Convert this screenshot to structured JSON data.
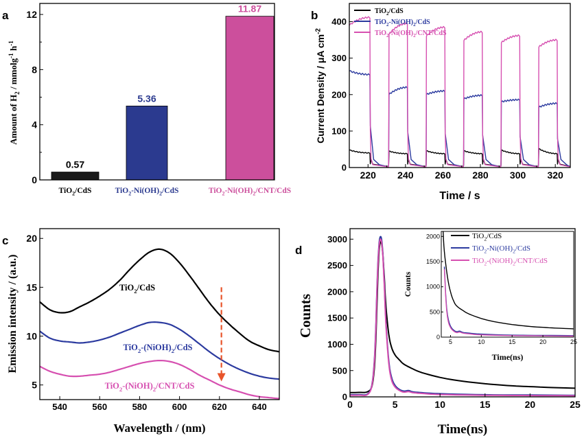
{
  "chart_data": [
    {
      "panel_label": "a",
      "type": "bar",
      "ylabel": "Amount of H2 / mmolg-1 h-1",
      "ylim": [
        0,
        12.8
      ],
      "yticks": [
        "0",
        "4",
        "8",
        "12"
      ],
      "categories": [
        "TiO2/CdS",
        "TiO2-Ni(OH)2/CdS",
        "TiO2-Ni(OH)2/CNT/CdS"
      ],
      "values": [
        0.57,
        5.36,
        11.87
      ],
      "value_labels": [
        "0.57",
        "5.36",
        "11.87"
      ],
      "colors": [
        "#1a1a1a",
        "#2b3a8f",
        "#cc4f9c"
      ]
    },
    {
      "panel_label": "b",
      "type": "line",
      "xlabel": "Time / s",
      "ylabel": "Current Density / μA cm-2",
      "xlim": [
        210,
        328
      ],
      "ylim": [
        0,
        450
      ],
      "xticks": [
        "220",
        "240",
        "260",
        "280",
        "300",
        "320"
      ],
      "yticks": [
        "0",
        "100",
        "200",
        "300",
        "400"
      ],
      "legend": [
        "TiO2/CdS",
        "TiO2-Ni(OH)2/CdS",
        "TiO2-Ni(OH)2/CNT/CdS"
      ],
      "legend_position": "top-left",
      "colors": [
        "#000000",
        "#2b3a9f",
        "#d64fb0"
      ],
      "on_intervals": [
        [
          210,
          221
        ],
        [
          231,
          241
        ],
        [
          251,
          261
        ],
        [
          271,
          281
        ],
        [
          291,
          301
        ],
        [
          311,
          321
        ]
      ],
      "series": [
        {
          "name": "TiO2/CdS",
          "on_start": [
            48,
            45,
            46,
            46,
            48,
            52
          ],
          "on_end": [
            40,
            38,
            38,
            38,
            38,
            38
          ],
          "dark": 3
        },
        {
          "name": "TiO2-Ni(OH)2/CdS",
          "on_start": [
            265,
            200,
            200,
            188,
            180,
            165
          ],
          "on_end": [
            255,
            220,
            210,
            198,
            186,
            176
          ],
          "dark": 2
        },
        {
          "name": "TiO2-Ni(OH)2/CNT/CdS",
          "on_start": [
            390,
            365,
            360,
            348,
            342,
            330
          ],
          "on_end": [
            412,
            395,
            385,
            372,
            362,
            350
          ],
          "dark": 2
        }
      ]
    },
    {
      "panel_label": "c",
      "type": "line",
      "xlabel": "Wavelength / (nm)",
      "ylabel": "Emission intensity / (a.u.)",
      "xlim": [
        530,
        650
      ],
      "ylim": [
        3.5,
        21
      ],
      "xticks": [
        "540",
        "560",
        "580",
        "600",
        "620",
        "640"
      ],
      "yticks": [
        "5",
        "10",
        "15",
        "20"
      ],
      "colors": [
        "#000000",
        "#2b3a9f",
        "#d64fb0",
        "#e8542a"
      ],
      "series": [
        {
          "name": "TiO2/CdS",
          "x": [
            530,
            535,
            540,
            545,
            550,
            555,
            560,
            565,
            570,
            575,
            580,
            585,
            590,
            595,
            600,
            605,
            610,
            615,
            620,
            625,
            630,
            635,
            640,
            645,
            650
          ],
          "y": [
            13.5,
            12.7,
            12.4,
            12.5,
            13.0,
            13.5,
            14.1,
            14.8,
            15.7,
            16.8,
            17.8,
            18.6,
            18.9,
            18.5,
            17.5,
            16.2,
            14.8,
            13.4,
            12.2,
            11.2,
            10.3,
            9.5,
            9.0,
            8.6,
            8.4
          ]
        },
        {
          "name": "TiO2-(NiOH)2/CdS",
          "x": [
            530,
            535,
            540,
            545,
            550,
            555,
            560,
            565,
            570,
            575,
            580,
            585,
            590,
            595,
            600,
            605,
            610,
            615,
            620,
            625,
            630,
            635,
            640,
            645,
            650
          ],
          "y": [
            10.5,
            9.8,
            9.5,
            9.4,
            9.3,
            9.4,
            9.6,
            9.9,
            10.3,
            10.7,
            11.1,
            11.4,
            11.4,
            11.2,
            10.7,
            10.0,
            9.2,
            8.4,
            7.7,
            7.1,
            6.6,
            6.2,
            5.9,
            5.7,
            5.6
          ]
        },
        {
          "name": "TiO2-(NiOH)2/CNT/CdS",
          "x": [
            530,
            535,
            540,
            545,
            550,
            555,
            560,
            565,
            570,
            575,
            580,
            585,
            590,
            595,
            600,
            605,
            610,
            615,
            620,
            625,
            630,
            635,
            640,
            645,
            650
          ],
          "y": [
            6.9,
            6.4,
            6.1,
            5.9,
            5.9,
            6.0,
            6.1,
            6.3,
            6.6,
            6.9,
            7.2,
            7.4,
            7.5,
            7.4,
            7.1,
            6.6,
            6.0,
            5.5,
            5.0,
            4.6,
            4.3,
            4.0,
            3.8,
            3.7,
            3.6
          ]
        }
      ],
      "annotations": [
        "TiO2/CdS",
        "TiO2-(NiOH)2/CdS",
        "TiO2-(NiOH)2/CNT/CdS"
      ],
      "arrow": {
        "x": 621,
        "y_from": 15.0,
        "y_to": 5.5
      }
    },
    {
      "panel_label": "d",
      "type": "line",
      "xlabel": "Time(ns)",
      "ylabel": "Counts",
      "xlim": [
        0,
        25
      ],
      "ylim": [
        0,
        3200
      ],
      "xticks": [
        "0",
        "5",
        "10",
        "15",
        "20",
        "25"
      ],
      "yticks": [
        "0",
        "500",
        "1000",
        "1500",
        "2000",
        "2500",
        "3000"
      ],
      "colors": [
        "#000000",
        "#2b3a9f",
        "#d64fb0"
      ],
      "series": [
        {
          "name": "TiO2/CdS",
          "x": [
            0,
            1,
            2,
            2.5,
            2.8,
            3.0,
            3.2,
            3.4,
            3.6,
            3.8,
            4.0,
            4.3,
            4.6,
            5.0,
            5.5,
            6.0,
            7,
            8,
            10,
            12,
            15,
            18,
            20,
            22,
            25
          ],
          "y": [
            80,
            85,
            100,
            250,
            800,
            1800,
            2700,
            2950,
            2800,
            2300,
            1700,
            1200,
            950,
            800,
            700,
            620,
            530,
            460,
            370,
            310,
            250,
            210,
            195,
            180,
            165
          ]
        },
        {
          "name": "TiO2-Ni(OH)2/CdS",
          "x": [
            0,
            1,
            2,
            2.5,
            2.8,
            3.0,
            3.2,
            3.4,
            3.6,
            3.8,
            4.0,
            4.3,
            4.6,
            5.0,
            5.5,
            6.0,
            6.5,
            7,
            8,
            10,
            15,
            20,
            25
          ],
          "y": [
            40,
            42,
            60,
            300,
            1000,
            2100,
            2850,
            3050,
            2850,
            2200,
            1400,
            700,
            380,
            220,
            140,
            110,
            120,
            95,
            80,
            60,
            40,
            35,
            30
          ]
        },
        {
          "name": "TiO2-(NiOH)2/CNT/CdS",
          "x": [
            0,
            1,
            2,
            2.5,
            2.8,
            3.0,
            3.2,
            3.4,
            3.6,
            3.8,
            4.0,
            4.3,
            4.6,
            5.0,
            5.5,
            6.0,
            6.5,
            7,
            8,
            10,
            15,
            20,
            25
          ],
          "y": [
            30,
            32,
            50,
            280,
            950,
            2050,
            2800,
            3000,
            2800,
            2150,
            1350,
            650,
            330,
            190,
            120,
            90,
            100,
            80,
            65,
            45,
            30,
            25,
            20
          ]
        }
      ],
      "inset": {
        "xlabel": "Time(ns)",
        "ylabel": "Counts",
        "xlim": [
          3.5,
          25
        ],
        "ylim": [
          0,
          2100
        ],
        "xticks": [
          "5",
          "10",
          "15",
          "20",
          "25"
        ],
        "yticks": [
          "0",
          "500",
          "1000",
          "1500",
          "2000"
        ],
        "legend": [
          "TiO2/CdS",
          "TiO2-Ni(OH)2/CdS",
          "TiO2-(NiOH)2/CNT/CdS"
        ]
      }
    }
  ]
}
